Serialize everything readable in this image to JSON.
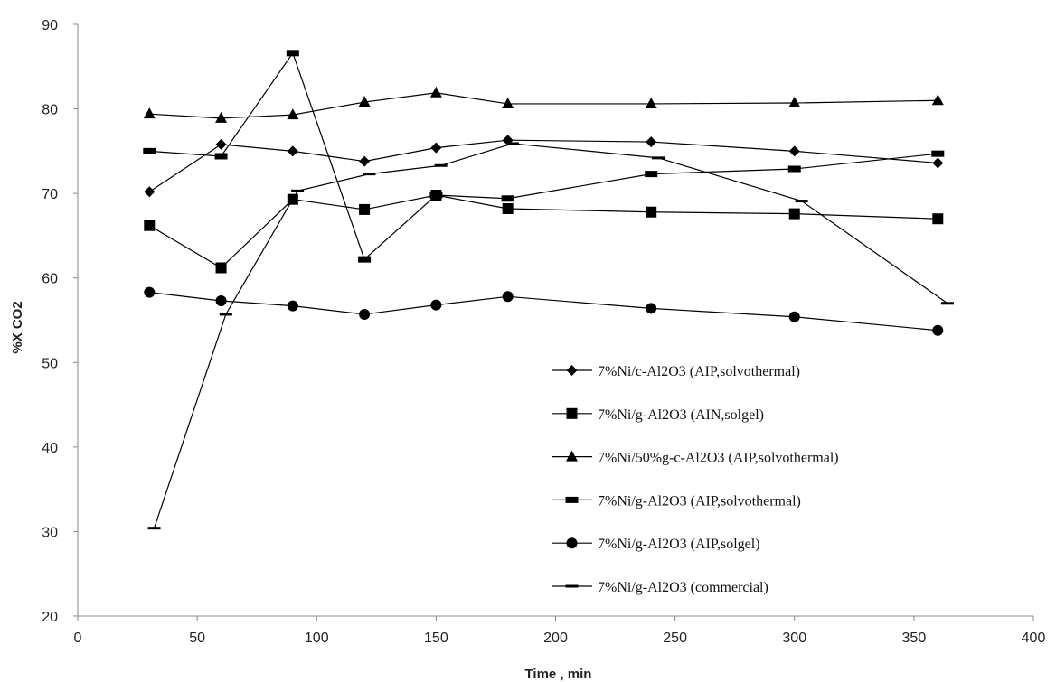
{
  "chart_data": {
    "type": "line",
    "title": "",
    "xlabel": "Time , min",
    "ylabel": "%X CO2",
    "xlim": [
      0,
      400
    ],
    "ylim": [
      20,
      90
    ],
    "x_ticks": [
      0,
      50,
      100,
      150,
      200,
      250,
      300,
      350,
      400
    ],
    "y_ticks": [
      20,
      30,
      40,
      50,
      60,
      70,
      80,
      90
    ],
    "grid": false,
    "legend_position": "right, inside plot",
    "series": [
      {
        "name": "7%Ni/c-Al2O3 (AIP,solvothermal)",
        "marker": "diamond",
        "x": [
          30,
          60,
          90,
          120,
          150,
          180,
          240,
          300,
          360
        ],
        "y": [
          70.2,
          75.8,
          75.0,
          73.8,
          75.4,
          76.3,
          76.1,
          75.0,
          73.6
        ]
      },
      {
        "name": "7%Ni/g-Al2O3 (AIN,solgel)",
        "marker": "square",
        "x": [
          30,
          60,
          90,
          120,
          150,
          180,
          240,
          300,
          360
        ],
        "y": [
          66.2,
          61.2,
          69.3,
          68.1,
          69.8,
          68.2,
          67.8,
          67.6,
          67.0
        ]
      },
      {
        "name": "7%Ni/50%g-c-Al2O3 (AIP,solvothermal)",
        "marker": "triangle",
        "x": [
          30,
          60,
          90,
          120,
          150,
          180,
          240,
          300,
          360
        ],
        "y": [
          79.4,
          78.9,
          79.3,
          80.8,
          81.9,
          80.6,
          80.6,
          80.7,
          81.0
        ]
      },
      {
        "name": "7%Ni/g-Al2O3 (AIP,solvothermal)",
        "marker": "thick-dash",
        "x": [
          30,
          60,
          90,
          120,
          150,
          180,
          240,
          300,
          360
        ],
        "y": [
          75.0,
          74.4,
          86.6,
          62.2,
          69.8,
          69.4,
          72.3,
          72.9,
          74.7
        ]
      },
      {
        "name": "7%Ni/g-Al2O3 (AIP,solgel)",
        "marker": "circle",
        "x": [
          30,
          60,
          90,
          120,
          150,
          180,
          240,
          300,
          360
        ],
        "y": [
          58.3,
          57.3,
          56.7,
          55.7,
          56.8,
          57.8,
          56.4,
          55.4,
          53.8
        ]
      },
      {
        "name": "7%Ni/g-Al2O3 (commercial)",
        "marker": "dash",
        "x": [
          32,
          62,
          92,
          122,
          152,
          182,
          243,
          303,
          364
        ],
        "y": [
          30.4,
          55.7,
          70.3,
          72.3,
          73.3,
          75.9,
          74.2,
          69.1,
          57.0
        ]
      }
    ]
  }
}
